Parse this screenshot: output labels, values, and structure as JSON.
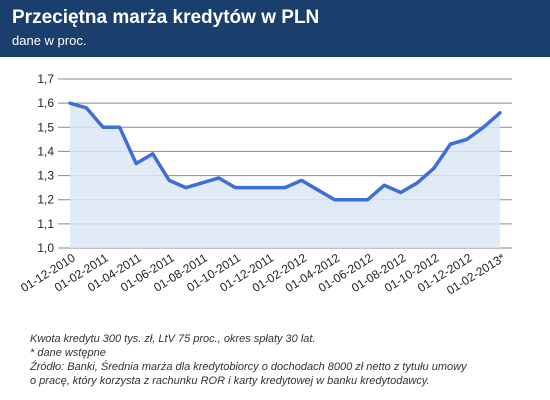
{
  "header": {
    "title": "Przeciętna marża kredytów w PLN",
    "subtitle": "dane w proc."
  },
  "colors": {
    "header_bg": "#1b3f6c",
    "line": "#3d6fd6",
    "area_fill": "#dce6f6"
  },
  "chart_data": {
    "type": "area",
    "title": "Przeciętna marża kredytów w PLN",
    "subtitle": "dane w proc.",
    "xlabel": "",
    "ylabel": "",
    "ylim": [
      1.0,
      1.7
    ],
    "yticks": [
      "1,0",
      "1,1",
      "1,2",
      "1,3",
      "1,4",
      "1,5",
      "1,6",
      "1,7"
    ],
    "grid": true,
    "legend": "none",
    "xtick_labels": [
      "01-12-2010",
      "01-02-2011",
      "01-04-2011",
      "01-06-2011",
      "01-08-2011",
      "01-10-2011",
      "01-12-2011",
      "01-02-2012",
      "01-04-2012",
      "01-06-2012",
      "01-08-2012",
      "01-10-2012",
      "01-12-2012",
      "01-02-2013*"
    ],
    "categories": [
      "2010-12",
      "2011-01",
      "2011-02",
      "2011-03",
      "2011-04",
      "2011-05",
      "2011-06",
      "2011-07",
      "2011-08",
      "2011-09",
      "2011-10",
      "2011-11",
      "2011-12",
      "2012-01",
      "2012-02",
      "2012-03",
      "2012-04",
      "2012-05",
      "2012-06",
      "2012-07",
      "2012-08",
      "2012-09",
      "2012-10",
      "2012-11",
      "2012-12",
      "2013-01",
      "2013-02"
    ],
    "values": [
      1.6,
      1.58,
      1.5,
      1.5,
      1.35,
      1.39,
      1.28,
      1.25,
      1.27,
      1.29,
      1.25,
      1.25,
      1.25,
      1.25,
      1.28,
      1.24,
      1.2,
      1.2,
      1.2,
      1.26,
      1.23,
      1.27,
      1.33,
      1.43,
      1.45,
      1.5,
      1.56
    ]
  },
  "notes": {
    "line1": "Kwota kredytu 300 tys. zł, LtV 75 proc., okres spłaty 30 lat.",
    "line2": "* dane wstępne",
    "line3": "Źródło: Banki, Średnia marża dla kredytobiorcy o dochodach 8000 zł netto z tytułu umowy",
    "line4": "o pracę, który korzysta z rachunku ROR i karty kredytowej w banku kredytodawcy."
  }
}
